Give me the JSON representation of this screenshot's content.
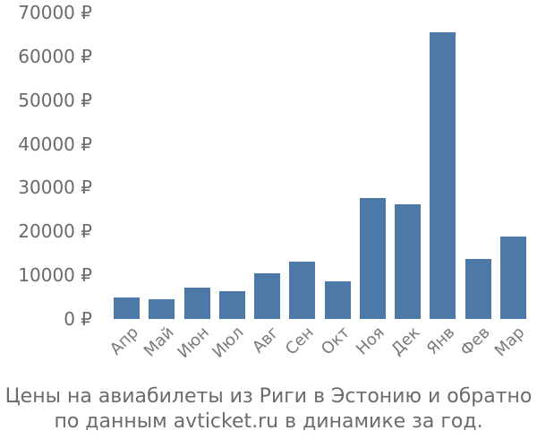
{
  "chart_data": {
    "type": "bar",
    "title": "",
    "categories": [
      "Апр",
      "Май",
      "Июн",
      "Июл",
      "Авг",
      "Сен",
      "Окт",
      "Ноя",
      "Дек",
      "Янв",
      "Фев",
      "Мар"
    ],
    "values": [
      5000,
      4500,
      7200,
      6400,
      10500,
      13100,
      8700,
      27700,
      26200,
      65600,
      13700,
      18900
    ],
    "unit": "₽",
    "xlabel": "",
    "ylabel": "",
    "ylim": [
      0,
      70000
    ],
    "ytick_step": 10000,
    "ytick_labels": [
      "70000 ₽",
      "60000 ₽",
      "50000 ₽",
      "40000 ₽",
      "30000 ₽",
      "20000 ₽",
      "10000 ₽",
      "0 ₽"
    ],
    "grid": false,
    "legend": false,
    "bar_color": "#4d79a8"
  },
  "caption": {
    "line1": "Цены на авиабилеты из Риги в Эстонию и обратно",
    "line2": "по данным avticket.ru в динамике за год."
  },
  "colors": {
    "bar": "#4d79a8",
    "axis_text": "#6a6a6a",
    "month_text": "#7a7a7a",
    "caption_text": "#6b6b6b",
    "background": "#ffffff"
  }
}
